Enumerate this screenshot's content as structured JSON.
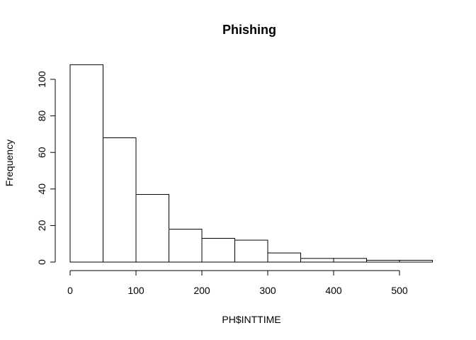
{
  "chart_data": {
    "type": "bar",
    "title": "Phishing",
    "xlabel": "PH$INTTIME",
    "ylabel": "Frequency",
    "bins": [
      {
        "start": 0,
        "end": 50,
        "count": 108
      },
      {
        "start": 50,
        "end": 100,
        "count": 68
      },
      {
        "start": 100,
        "end": 150,
        "count": 37
      },
      {
        "start": 150,
        "end": 200,
        "count": 18
      },
      {
        "start": 200,
        "end": 250,
        "count": 13
      },
      {
        "start": 250,
        "end": 300,
        "count": 12
      },
      {
        "start": 300,
        "end": 350,
        "count": 5
      },
      {
        "start": 350,
        "end": 400,
        "count": 2
      },
      {
        "start": 400,
        "end": 450,
        "count": 2
      },
      {
        "start": 450,
        "end": 500,
        "count": 1
      },
      {
        "start": 500,
        "end": 550,
        "count": 1
      }
    ],
    "x_ticks": [
      0,
      100,
      200,
      300,
      400,
      500
    ],
    "y_ticks": [
      0,
      20,
      40,
      60,
      80,
      100
    ],
    "xlim": [
      0,
      550
    ],
    "ylim": [
      0,
      108
    ],
    "grid": false,
    "legend": "none"
  }
}
